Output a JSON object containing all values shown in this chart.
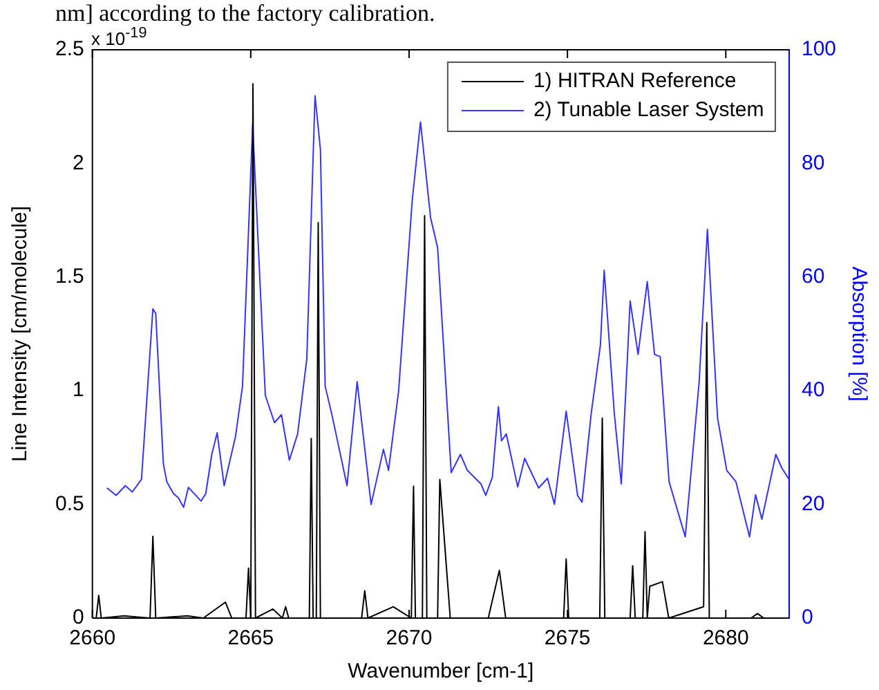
{
  "chart_data": {
    "type": "line",
    "xlabel": "Wavenumber [cm-1]",
    "ylabel": "Line Intensity [cm/molecule]",
    "y2label": "Absorption [%]",
    "annotations": [
      "nm] according to the factory calibration.",
      "x 10$^{-19}$"
    ],
    "xlim": [
      2660,
      2682
    ],
    "xticks": [
      2660,
      2665,
      2670,
      2675,
      2680
    ],
    "ylim": [
      0,
      2.5
    ],
    "yticks": [
      0,
      0.5,
      1,
      1.5,
      2,
      2.5
    ],
    "y2lim": [
      0,
      100
    ],
    "y2ticks": [
      0,
      20,
      40,
      60,
      80,
      100
    ],
    "legend": "top right",
    "grid": false,
    "marker": "none",
    "line_style": "solid",
    "series": [
      {
        "name": "1) HITRAN Reference",
        "color": "#000000",
        "x": [
          2660,
          2660.12,
          2660.2,
          2660.28,
          2661,
          2661.82,
          2661.91,
          2662.0,
          2663,
          2663.5,
          2664.2,
          2664.4,
          2664.85,
          2664.93,
          2665.0,
          2665.07,
          2665.15,
          2665.7,
          2666.0,
          2666.1,
          2666.2,
          2666.85,
          2666.91,
          2666.97,
          2667.07,
          2667.13,
          2667.2,
          2668.5,
          2668.6,
          2668.7,
          2669.5,
          2670.07,
          2670.14,
          2670.2,
          2670.42,
          2670.49,
          2670.56,
          2670.9,
          2670.97,
          2671.3,
          2672.5,
          2672.85,
          2673.05,
          2674.88,
          2674.96,
          2675.04,
          2676.02,
          2676.1,
          2676.18,
          2676.98,
          2677.06,
          2677.14,
          2677.38,
          2677.45,
          2677.52,
          2677.6,
          2678.0,
          2678.2,
          2679.3,
          2679.4,
          2679.48,
          2680.1,
          2680.8,
          2681.0,
          2681.2,
          2682
        ],
        "values": [
          0,
          0,
          0.1,
          0,
          0.01,
          0,
          0.36,
          0,
          0.01,
          0,
          0.07,
          0,
          0,
          0.22,
          0,
          2.35,
          0,
          0.04,
          0,
          0.05,
          0,
          0,
          0.79,
          0,
          0,
          1.74,
          0,
          0,
          0.12,
          0,
          0.05,
          0,
          0.58,
          0,
          0,
          1.77,
          0,
          0,
          0.61,
          0,
          0,
          0.21,
          0,
          0,
          0.26,
          0,
          0,
          0.88,
          0,
          0,
          0.23,
          0,
          0,
          0.38,
          0,
          0.14,
          0.16,
          0,
          0.05,
          1.3,
          0,
          0,
          0,
          0.02,
          0,
          0
        ]
      },
      {
        "name": "2) Tunable Laser System",
        "color": "#3333ff",
        "axis": "y2",
        "x": [
          2660.46,
          2660.75,
          2661.04,
          2661.26,
          2661.55,
          2661.91,
          2662.0,
          2662.24,
          2662.35,
          2662.56,
          2662.71,
          2662.88,
          2663.03,
          2663.43,
          2663.58,
          2663.77,
          2663.94,
          2664.16,
          2664.52,
          2664.74,
          2665.06,
          2665.46,
          2665.75,
          2665.97,
          2666.22,
          2666.48,
          2666.77,
          2667.03,
          2667.2,
          2667.35,
          2667.57,
          2668.04,
          2668.36,
          2668.8,
          2669.19,
          2669.35,
          2669.67,
          2670.1,
          2670.36,
          2670.68,
          2670.9,
          2671.33,
          2671.62,
          2671.84,
          2672.27,
          2672.42,
          2672.63,
          2672.82,
          2672.92,
          2673.07,
          2673.43,
          2673.65,
          2674.09,
          2674.37,
          2674.59,
          2674.96,
          2675.32,
          2675.46,
          2675.75,
          2676.04,
          2676.16,
          2676.48,
          2676.7,
          2676.98,
          2677.23,
          2677.52,
          2677.75,
          2677.93,
          2678.21,
          2678.72,
          2679.16,
          2679.42,
          2679.74,
          2680.03,
          2680.32,
          2680.75,
          2680.94,
          2681.14,
          2681.58,
          2681.77,
          2682
        ],
        "values": [
          22.9,
          21.6,
          23.3,
          22.2,
          24.4,
          54.4,
          53.6,
          27.2,
          24.0,
          21.9,
          21.2,
          19.5,
          23.0,
          20.6,
          21.9,
          28.8,
          32.6,
          23.3,
          32.0,
          40.8,
          86.8,
          39.2,
          34.4,
          35.8,
          27.8,
          32.4,
          45.6,
          91.9,
          82.5,
          40.8,
          35.6,
          23.3,
          41.6,
          20.0,
          29.7,
          26.0,
          40.0,
          73.6,
          87.3,
          70.4,
          65.2,
          25.6,
          28.8,
          26.0,
          23.6,
          21.6,
          24.8,
          37.2,
          31.2,
          32.4,
          23.1,
          28.1,
          22.9,
          24.6,
          20.0,
          36.4,
          21.6,
          20.4,
          36.0,
          48.0,
          61.2,
          36.0,
          23.6,
          55.8,
          46.4,
          59.2,
          46.4,
          46.0,
          24.0,
          14.3,
          41.6,
          68.4,
          35.2,
          26.0,
          24.0,
          14.3,
          21.7,
          17.4,
          28.8,
          26.4,
          24.4
        ]
      }
    ]
  }
}
